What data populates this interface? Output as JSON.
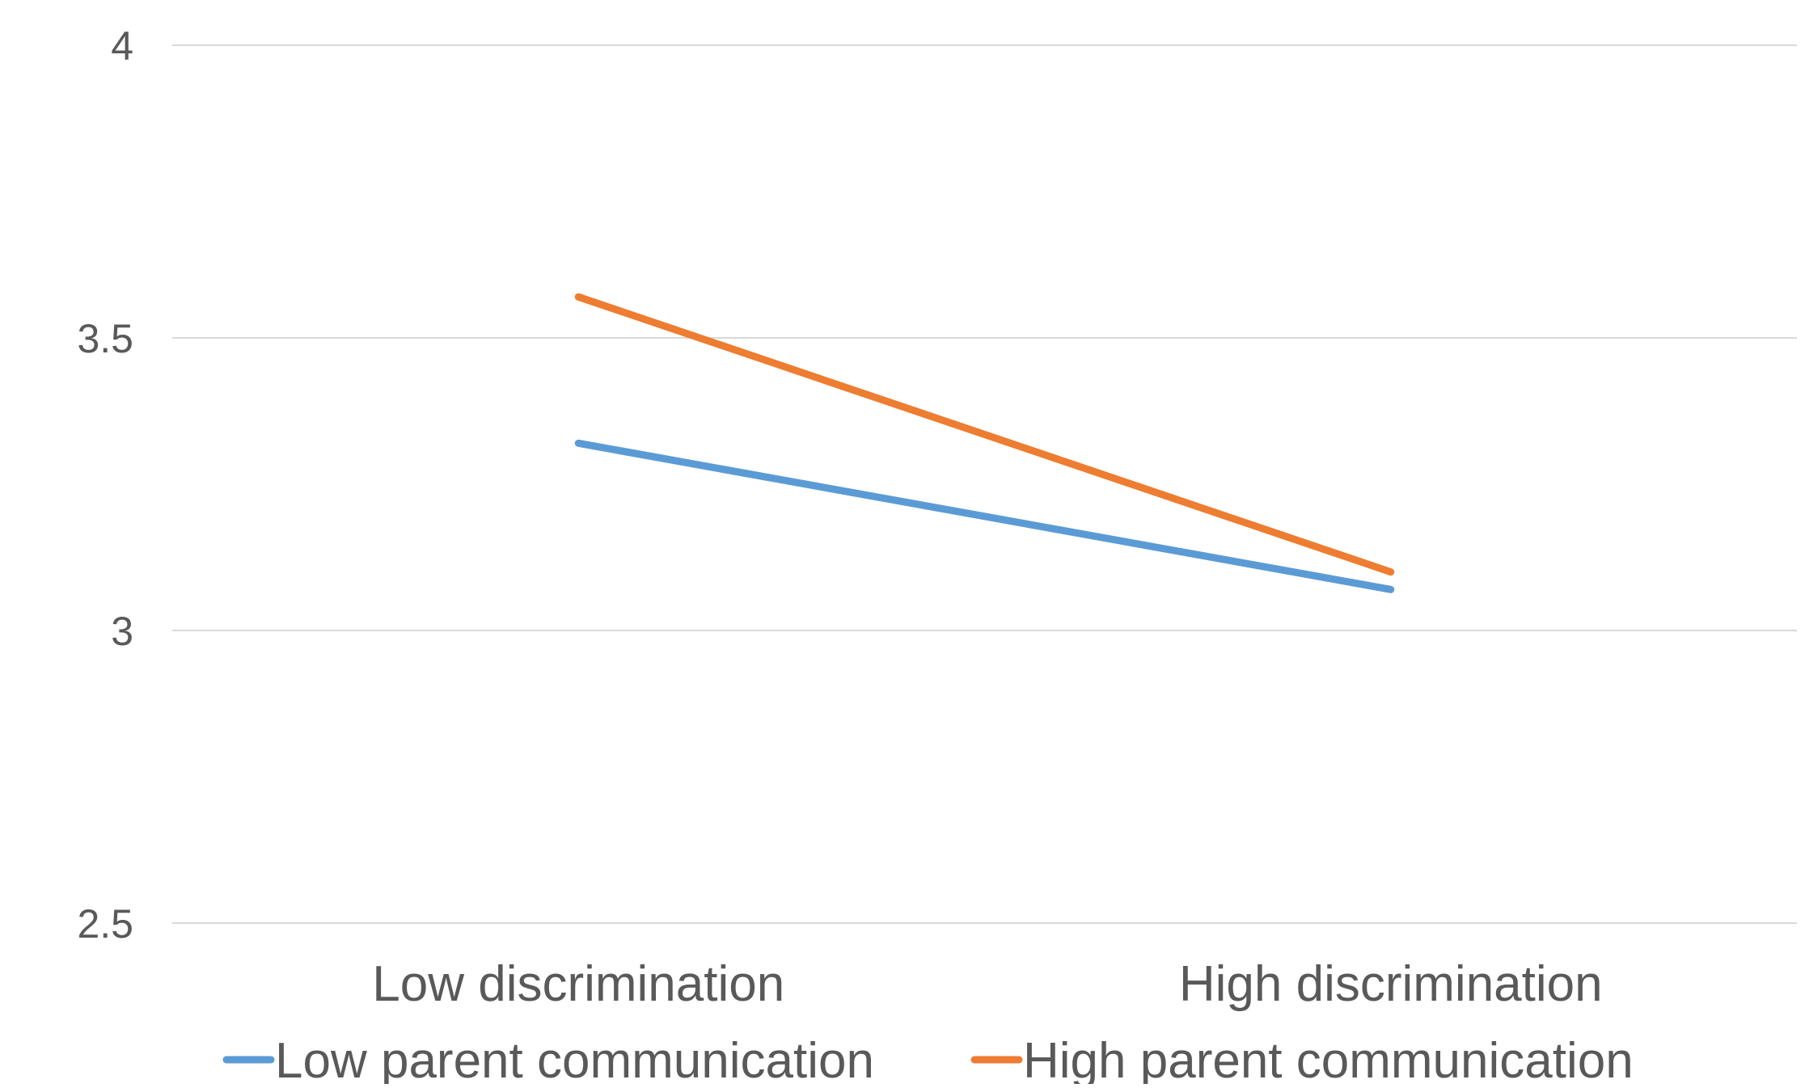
{
  "chart_data": {
    "type": "line",
    "title": "",
    "xlabel": "",
    "ylabel": "",
    "categories": [
      "Low discrimination",
      "High discrimination"
    ],
    "ylim": [
      2.5,
      4
    ],
    "yticks": [
      "2.5",
      "3",
      "3.5",
      "4"
    ],
    "grid": true,
    "legend_position": "bottom",
    "series": [
      {
        "name": "Low parent communication",
        "values": [
          3.32,
          3.07
        ],
        "color": "#5B9BD5"
      },
      {
        "name": "High parent communication",
        "values": [
          3.57,
          3.1
        ],
        "color": "#ED7D31"
      }
    ]
  }
}
